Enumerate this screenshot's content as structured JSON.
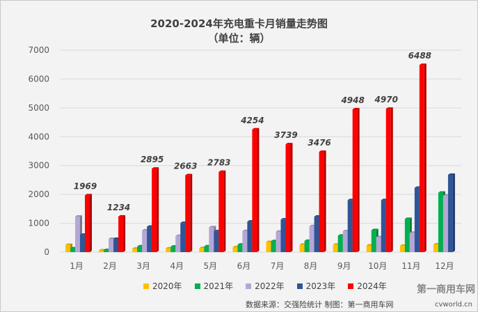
{
  "chart_data": {
    "type": "bar",
    "title": "2020-2024年充电重卡月销量走势图",
    "subtitle": "（单位：辆）",
    "categories": [
      "1月",
      "2月",
      "3月",
      "4月",
      "5月",
      "6月",
      "7月",
      "8月",
      "9月",
      "10月",
      "11月",
      "12月"
    ],
    "ylim": [
      0,
      7000
    ],
    "yticks": [
      0,
      1000,
      2000,
      3000,
      4000,
      5000,
      6000,
      7000
    ],
    "grid": true,
    "legend_position": "bottom",
    "series": [
      {
        "name": "2020年",
        "color": "#ffc000",
        "values": [
          250,
          60,
          120,
          130,
          140,
          170,
          350,
          260,
          260,
          230,
          220,
          270
        ]
      },
      {
        "name": "2021年",
        "color": "#00b050",
        "values": [
          130,
          70,
          200,
          190,
          200,
          260,
          380,
          390,
          570,
          760,
          1150,
          2060
        ]
      },
      {
        "name": "2022年",
        "color": "#b4a7d6",
        "values": [
          1230,
          460,
          750,
          560,
          860,
          730,
          710,
          900,
          720,
          520,
          670,
          1960
        ]
      },
      {
        "name": "2023年",
        "color": "#2f5597",
        "values": [
          600,
          460,
          880,
          1010,
          720,
          1060,
          1130,
          1230,
          1800,
          1800,
          2230,
          2680
        ]
      },
      {
        "name": "2024年",
        "color": "#ff0000",
        "values": [
          1969,
          1234,
          2895,
          2663,
          2783,
          4254,
          3739,
          3476,
          4948,
          4970,
          6488,
          null
        ],
        "data_labels": true
      }
    ]
  },
  "footer": "数据来源：交强险统计 制图：第一商用车网",
  "watermark": {
    "logo": "第一商用车网",
    "url": "cvworld.cn"
  }
}
